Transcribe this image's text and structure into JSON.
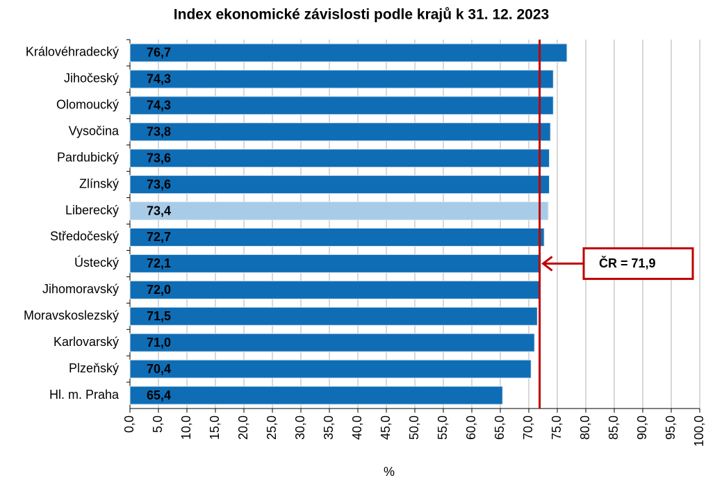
{
  "chart_data": {
    "type": "barh",
    "title": "Index ekonomické závislosti podle krajů k 31. 12. 2023",
    "xlabel": "%",
    "categories": [
      "Královéhradecký",
      "Jihočeský",
      "Olomoucký",
      "Vysočina",
      "Pardubický",
      "Zlínský",
      "Liberecký",
      "Středočeský",
      "Ústecký",
      "Jihomoravský",
      "Moravskoslezský",
      "Karlovarský",
      "Plzeňský",
      "Hl. m. Praha"
    ],
    "values": [
      76.7,
      74.3,
      74.3,
      73.8,
      73.6,
      73.6,
      73.4,
      72.7,
      72.1,
      72.0,
      71.5,
      71.0,
      70.4,
      65.4
    ],
    "value_labels": [
      "76,7",
      "74,3",
      "74,3",
      "73,8",
      "73,6",
      "73,6",
      "73,4",
      "72,7",
      "72,1",
      "72,0",
      "71,5",
      "71,0",
      "70,4",
      "65,4"
    ],
    "colors": [
      "#0f6db5",
      "#0f6db5",
      "#0f6db5",
      "#0f6db5",
      "#0f6db5",
      "#0f6db5",
      "#a8cbe8",
      "#0f6db5",
      "#0f6db5",
      "#0f6db5",
      "#0f6db5",
      "#0f6db5",
      "#0f6db5",
      "#0f6db5"
    ],
    "xlim": [
      0,
      100
    ],
    "xticks": [
      {
        "value": 0,
        "label": "0,0"
      },
      {
        "value": 5,
        "label": "5,0"
      },
      {
        "value": 10,
        "label": "10,0"
      },
      {
        "value": 15,
        "label": "15,0"
      },
      {
        "value": 20,
        "label": "20,0"
      },
      {
        "value": 25,
        "label": "25,0"
      },
      {
        "value": 30,
        "label": "30,0"
      },
      {
        "value": 35,
        "label": "35,0"
      },
      {
        "value": 40,
        "label": "40,0"
      },
      {
        "value": 45,
        "label": "45,0"
      },
      {
        "value": 50,
        "label": "50,0"
      },
      {
        "value": 55,
        "label": "55,0"
      },
      {
        "value": 60,
        "label": "60,0"
      },
      {
        "value": 65,
        "label": "65,0"
      },
      {
        "value": 70,
        "label": "70,0"
      },
      {
        "value": 75,
        "label": "75,0"
      },
      {
        "value": 80,
        "label": "80,0"
      },
      {
        "value": 85,
        "label": "85,0"
      },
      {
        "value": 90,
        "label": "90,0"
      },
      {
        "value": 95,
        "label": "95,0"
      },
      {
        "value": 100,
        "label": "100,0"
      }
    ],
    "grid": true,
    "reference_line": {
      "value": 71.9,
      "label": "ČR = 71,9",
      "color": "#c00000"
    }
  }
}
